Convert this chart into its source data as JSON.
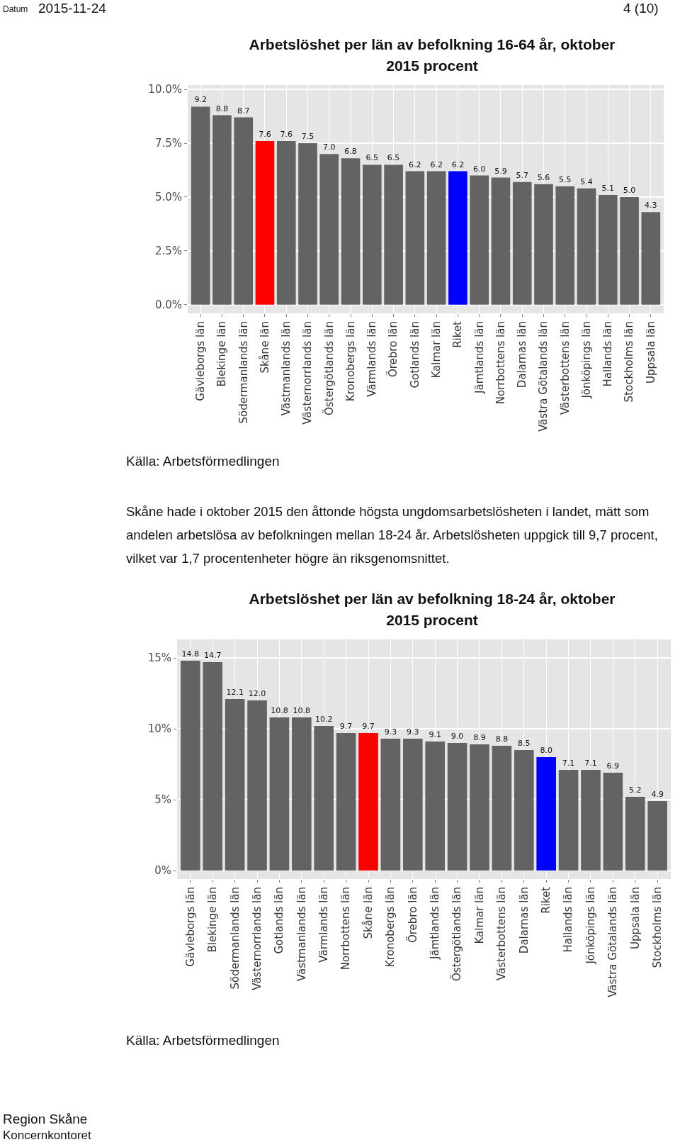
{
  "chart_data": [
    {
      "type": "bar",
      "title": "Arbetslöshet per län av befolkning 16-64 år, oktober 2015 procent",
      "categories": [
        "Gävleborgs län",
        "Blekinge län",
        "Södermanlands län",
        "Skåne län",
        "Västmanlands län",
        "Västernorrlands län",
        "Östergötlands län",
        "Kronobergs län",
        "Värmlands län",
        "Örebro län",
        "Gotlands län",
        "Kalmar län",
        "Riket",
        "Jämtlands län",
        "Norrbottens län",
        "Dalarnas län",
        "Västra Götalands län",
        "Västerbottens län",
        "Jönköpings län",
        "Hallands län",
        "Stockholms län",
        "Uppsala län"
      ],
      "values": [
        9.2,
        8.8,
        8.7,
        7.6,
        7.6,
        7.5,
        7.0,
        6.8,
        6.5,
        6.5,
        6.2,
        6.2,
        6.2,
        6.0,
        5.9,
        5.7,
        5.6,
        5.5,
        5.4,
        5.1,
        5.0,
        4.3
      ],
      "value_labels": [
        "9.2",
        "8.8",
        "8.7",
        "7.6",
        "7.6",
        "7.5",
        "7.0",
        "6.8",
        "6.5",
        "6.5",
        "6.2",
        "6.2",
        "6.2",
        "6.0",
        "5.9",
        "5.7",
        "5.6",
        "5.5",
        "5.4",
        "5.1",
        "5.0",
        "4.3"
      ],
      "colors": [
        "#636363",
        "#636363",
        "#636363",
        "#ff0000",
        "#636363",
        "#636363",
        "#636363",
        "#636363",
        "#636363",
        "#636363",
        "#636363",
        "#636363",
        "#0000ff",
        "#636363",
        "#636363",
        "#636363",
        "#636363",
        "#636363",
        "#636363",
        "#636363",
        "#636363",
        "#636363"
      ],
      "ylim": [
        -0.4,
        10.2
      ],
      "yticks": [
        {
          "value": 0,
          "label": "0.0%"
        },
        {
          "value": 2.5,
          "label": "2.5%"
        },
        {
          "value": 5,
          "label": "5.0%"
        },
        {
          "value": 7.5,
          "label": "7.5%"
        },
        {
          "value": 10,
          "label": "10.0%"
        }
      ],
      "grid": true,
      "annotations": [
        "Datum",
        "2015-11-24",
        "4 (10)",
        "Källa: Arbetsförmedlingen",
        "Skåne hade i oktober 2015 den åttonde högsta ungdomsarbetslösheten i landet, mätt som andelen arbetslösa av befolkningen mellan 18-24 år. Arbetslösheten uppgick till 9,7 procent, vilket var 1,7 procentenheter högre än riksgenomsnittet."
      ]
    },
    {
      "type": "bar",
      "title": "Arbetslöshet per län av befolkning 18-24 år, oktober 2015 procent",
      "categories": [
        "Gävleborgs län",
        "Blekinge län",
        "Södermanlands län",
        "Västernorrlands län",
        "Gotlands län",
        "Västmanlands län",
        "Värmlands län",
        "Norrbottens län",
        "Skåne län",
        "Kronobergs län",
        "Örebro län",
        "Jämtlands län",
        "Östergötlands län",
        "Kalmar län",
        "Västerbottens län",
        "Dalarnas län",
        "Riket",
        "Hallands län",
        "Jönköpings län",
        "Västra Götalands län",
        "Uppsala län",
        "Stockholms län"
      ],
      "values": [
        14.8,
        14.7,
        12.1,
        12.0,
        10.8,
        10.8,
        10.2,
        9.7,
        9.7,
        9.3,
        9.3,
        9.1,
        9.0,
        8.9,
        8.8,
        8.5,
        8.0,
        7.1,
        7.1,
        6.9,
        5.2,
        4.9
      ],
      "value_labels": [
        "14.8",
        "14.7",
        "12.1",
        "12.0",
        "10.8",
        "10.8",
        "10.2",
        "9.7",
        "9.7",
        "9.3",
        "9.3",
        "9.1",
        "9.0",
        "8.9",
        "8.8",
        "8.5",
        "8.0",
        "7.1",
        "7.1",
        "6.9",
        "5.2",
        "4.9"
      ],
      "colors": [
        "#636363",
        "#636363",
        "#636363",
        "#636363",
        "#636363",
        "#636363",
        "#636363",
        "#636363",
        "#ff0000",
        "#636363",
        "#636363",
        "#636363",
        "#636363",
        "#636363",
        "#636363",
        "#636363",
        "#0000ff",
        "#636363",
        "#636363",
        "#636363",
        "#636363",
        "#636363"
      ],
      "ylim": [
        -0.6,
        16.3
      ],
      "yticks": [
        {
          "value": 0,
          "label": "0%"
        },
        {
          "value": 5,
          "label": "5%"
        },
        {
          "value": 10,
          "label": "10%"
        },
        {
          "value": 15,
          "label": "15%"
        }
      ],
      "grid": true,
      "annotations": [
        "Källa: Arbetsförmedlingen",
        "Region Skåne",
        "Koncernkontoret"
      ]
    }
  ]
}
